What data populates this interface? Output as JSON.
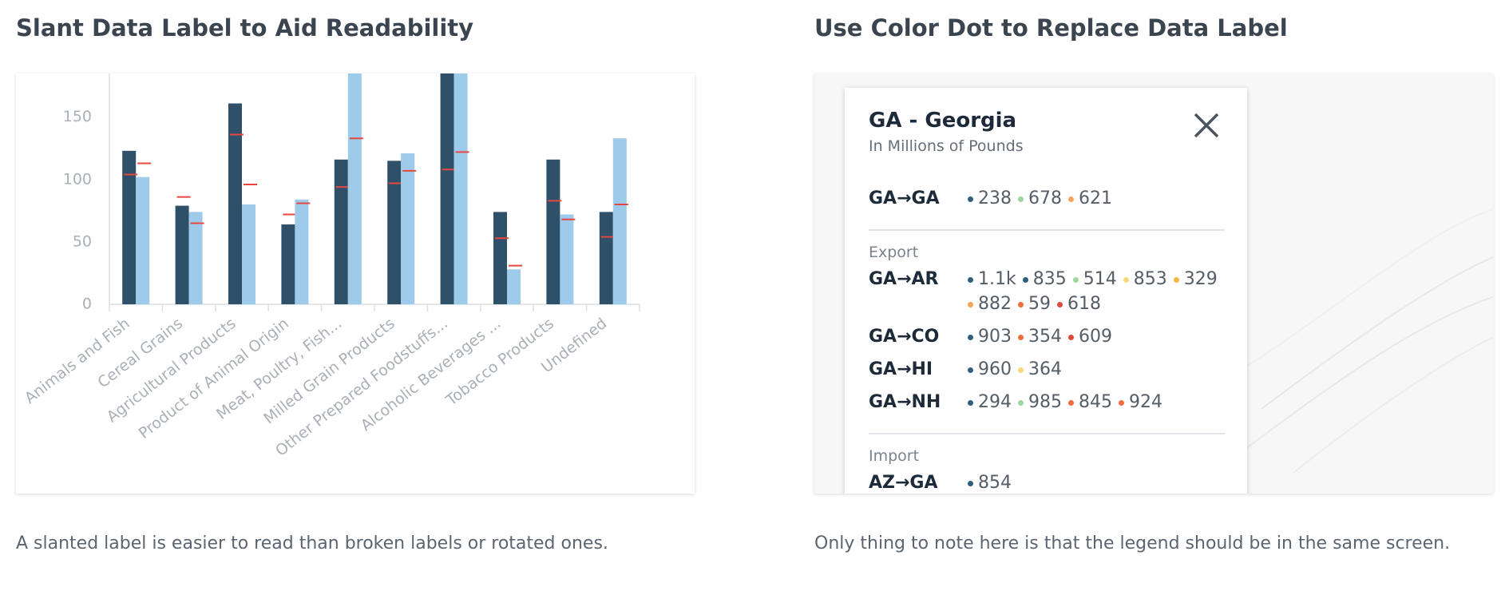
{
  "left": {
    "title": "Slant Data Label to Aid Readability",
    "caption": "A slanted label is easier to read than broken labels or rotated ones."
  },
  "chart_data": {
    "type": "bar",
    "categories": [
      "Animals and Fish",
      "Cereal Grains",
      "Agricultural Products",
      "Product of Animal Origin",
      "Meat, Poultry, Fish...",
      "Milled Grain Products",
      "Other Prepared Foodstuffs...",
      "Alcoholic Beverages ...",
      "Tobacco Products",
      "Undefined"
    ],
    "series": [
      {
        "color": "#2f5069",
        "values": [
          123,
          79,
          161,
          64,
          116,
          115,
          190,
          74,
          116,
          74
        ],
        "markers": [
          104,
          86,
          136,
          72,
          94,
          97,
          108,
          53,
          83,
          54
        ]
      },
      {
        "color": "#9ecbea",
        "values": [
          102,
          74,
          80,
          84,
          190,
          121,
          195,
          28,
          72,
          133
        ],
        "markers": [
          113,
          65,
          96,
          81,
          133,
          107,
          122,
          31,
          68,
          80
        ]
      }
    ],
    "marker_color": "#e8473f",
    "ylim": [
      0,
      185
    ],
    "yticks": [
      0,
      50,
      100,
      150
    ]
  },
  "right": {
    "title": "Use Color Dot to Replace Data Label",
    "caption": "Only thing to note here is that the legend should be in the same screen.",
    "popup": {
      "title": "GA - Georgia",
      "subtitle": "In Millions of Pounds",
      "sections": [
        {
          "rows": [
            {
              "label": "GA→GA",
              "items": [
                {
                  "color": "#2f5f80",
                  "text": "238"
                },
                {
                  "color": "#9fd59f",
                  "text": "678"
                },
                {
                  "color": "#f5a55a",
                  "text": "621"
                }
              ]
            }
          ]
        },
        {
          "heading": "Export",
          "rows": [
            {
              "label": "GA→AR",
              "items": [
                {
                  "color": "#2f5f80",
                  "text": "1.1k"
                },
                {
                  "color": "#2f5f80",
                  "text": "835"
                },
                {
                  "color": "#9fd59f",
                  "text": "514"
                },
                {
                  "color": "#f9d77a",
                  "text": "853"
                },
                {
                  "color": "#f5b942",
                  "text": "329"
                },
                {
                  "color": "#f5a55a",
                  "text": "882"
                },
                {
                  "color": "#f06c3b",
                  "text": "59"
                },
                {
                  "color": "#e04a3a",
                  "text": "618"
                }
              ]
            },
            {
              "label": "GA→CO",
              "items": [
                {
                  "color": "#2f5f80",
                  "text": "903"
                },
                {
                  "color": "#f06c3b",
                  "text": "354"
                },
                {
                  "color": "#e04a3a",
                  "text": "609"
                }
              ]
            },
            {
              "label": "GA→HI",
              "items": [
                {
                  "color": "#2f5f80",
                  "text": "960"
                },
                {
                  "color": "#f9d77a",
                  "text": "364"
                }
              ]
            },
            {
              "label": "GA→NH",
              "items": [
                {
                  "color": "#2f5f80",
                  "text": "294"
                },
                {
                  "color": "#9fd59f",
                  "text": "985"
                },
                {
                  "color": "#f06c3b",
                  "text": "845"
                },
                {
                  "color": "#f06c3b",
                  "text": "924"
                }
              ]
            }
          ]
        },
        {
          "heading": "Import",
          "rows": [
            {
              "label": "AZ→GA",
              "items": [
                {
                  "color": "#2f5f80",
                  "text": "854"
                }
              ]
            }
          ]
        }
      ]
    }
  }
}
